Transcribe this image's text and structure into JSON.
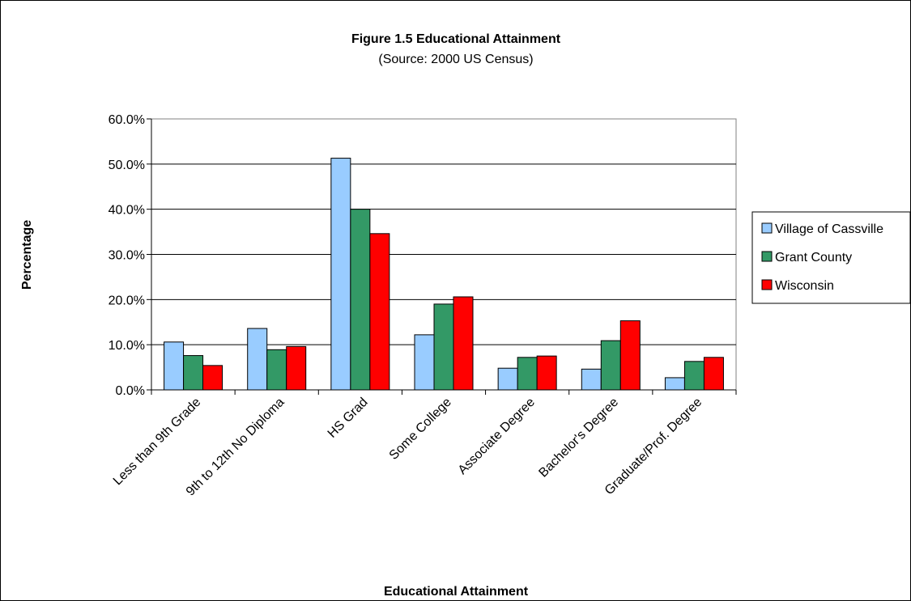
{
  "chart_data": {
    "type": "bar",
    "title": "Figure 1.5 Educational Attainment",
    "subtitle": "(Source: 2000 US Census)",
    "xlabel": "Educational Attainment",
    "ylabel": "Percentage",
    "ylim": [
      0,
      60
    ],
    "yticks": [
      "0.0%",
      "10.0%",
      "20.0%",
      "30.0%",
      "40.0%",
      "50.0%",
      "60.0%"
    ],
    "grid": true,
    "legend": "right",
    "categories": [
      "Less than 9th Grade",
      "9th to 12th No Diploma",
      "HS Grad",
      "Some College",
      "Associate Degree",
      "Bachelor's Degree",
      "Graduate/Prof. Degree"
    ],
    "series": [
      {
        "name": "Village of Cassville",
        "color": "#99ccff",
        "values": [
          10.6,
          13.6,
          51.3,
          12.2,
          4.8,
          4.6,
          2.7
        ]
      },
      {
        "name": "Grant County",
        "color": "#339966",
        "values": [
          7.6,
          8.9,
          40.0,
          19.0,
          7.2,
          10.9,
          6.3
        ]
      },
      {
        "name": "Wisconsin",
        "color": "#ff0000",
        "values": [
          5.4,
          9.6,
          34.6,
          20.6,
          7.5,
          15.3,
          7.2
        ]
      }
    ]
  }
}
